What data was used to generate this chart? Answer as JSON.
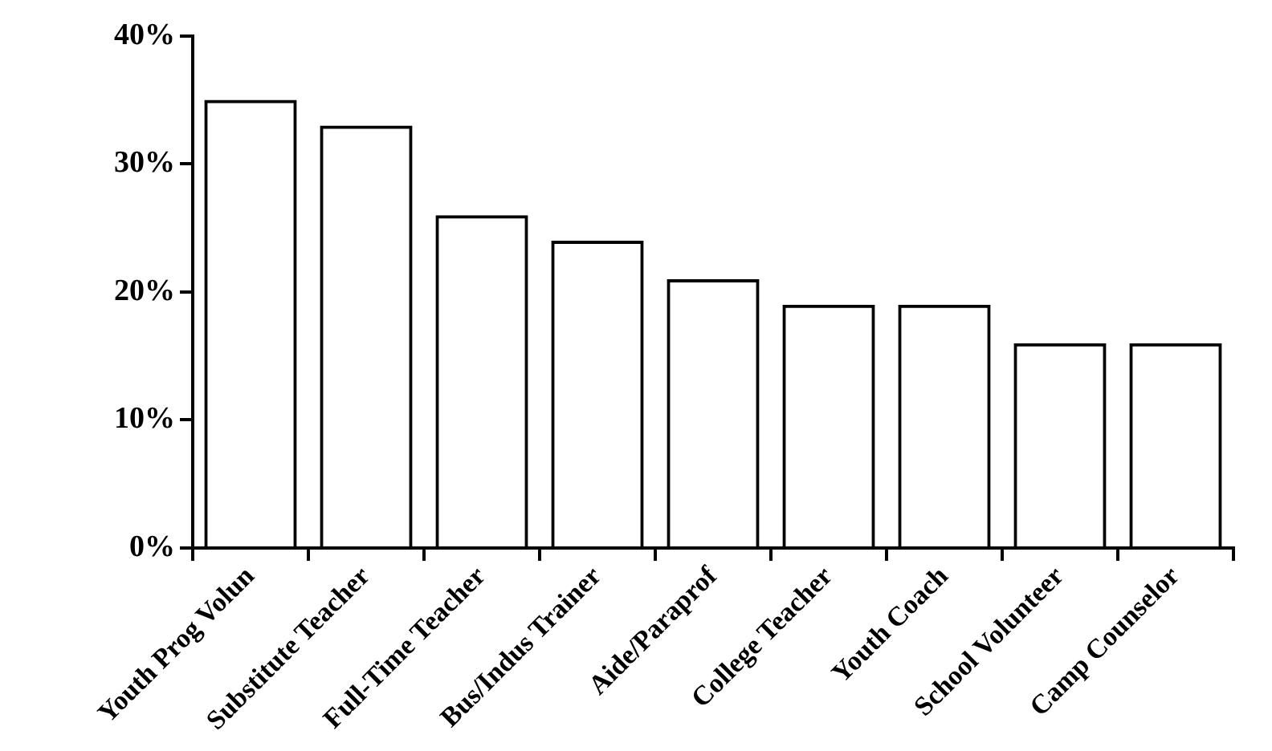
{
  "chart_data": {
    "type": "bar",
    "categories": [
      "Youth Prog Volun",
      "Substitute Teacher",
      "Full-Time Teacher",
      "Bus/Indus Trainer",
      "Aide/Paraprof",
      "College Teacher",
      "Youth Coach",
      "School Volunteer",
      "Camp Counselor"
    ],
    "values": [
      35,
      33,
      26,
      24,
      21,
      19,
      19,
      16,
      16
    ],
    "color": "#000000",
    "ylim": [
      0,
      40
    ],
    "yticks": [
      {
        "value": 0,
        "label": "0%"
      },
      {
        "value": 10,
        "label": "10%"
      },
      {
        "value": 20,
        "label": "20%"
      },
      {
        "value": 30,
        "label": "30%"
      },
      {
        "value": 40,
        "label": "40%"
      }
    ],
    "grid": false,
    "legend": false
  }
}
